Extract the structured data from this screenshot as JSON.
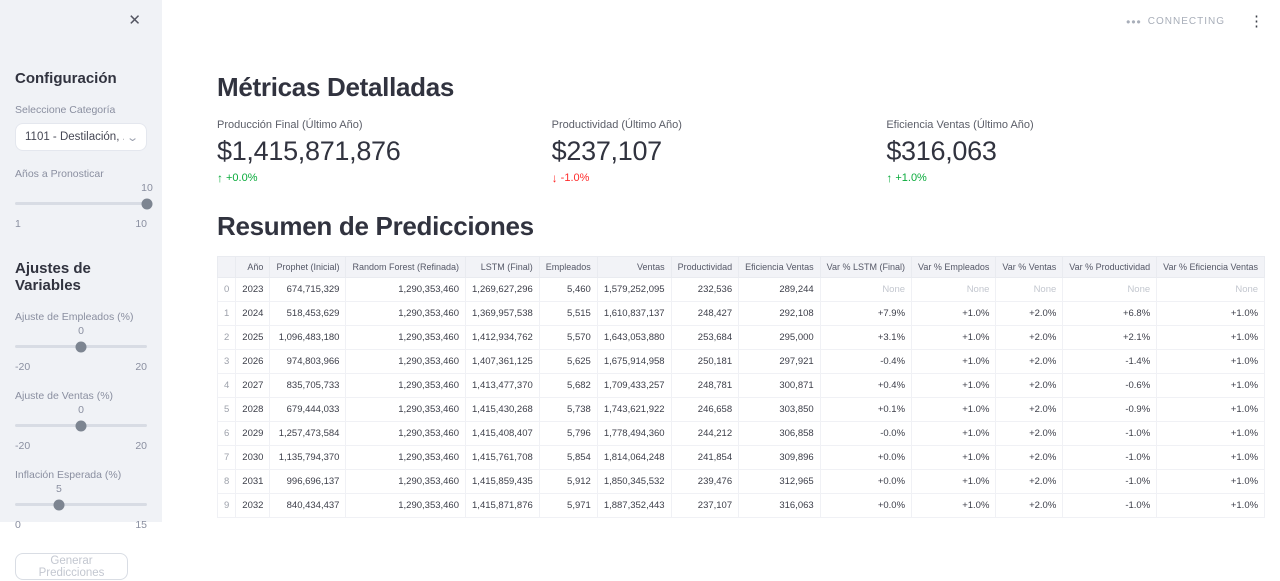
{
  "app": {
    "status": "CONNECTING",
    "status_dots": "•••",
    "menu_glyph": "⋮",
    "close_glyph": "✕"
  },
  "icons": {
    "up_arrow": "↑",
    "down_arrow": "↓",
    "chevron_down": "⌄"
  },
  "colors": {
    "delta_up": "#09ab3b",
    "delta_down": "#ff2b2b",
    "sidebar_bg": "#f0f2f6",
    "accent_thumb": "#7d8591"
  },
  "sidebar": {
    "title": "Configuración",
    "category": {
      "label": "Seleccione Categoría",
      "value": "1101 - Destilación, ..."
    },
    "years": {
      "label": "Años a Pronosticar",
      "value": "10",
      "min": "1",
      "max": "10",
      "percent": 100
    },
    "adjustments_title": "Ajustes de Variables",
    "sliders": [
      {
        "label": "Ajuste de Empleados (%)",
        "value": "0",
        "min": "-20",
        "max": "20",
        "percent": 50
      },
      {
        "label": "Ajuste de Ventas (%)",
        "value": "0",
        "min": "-20",
        "max": "20",
        "percent": 50
      },
      {
        "label": "Inflación Esperada (%)",
        "value": "5",
        "min": "0",
        "max": "15",
        "percent": 33.3
      }
    ],
    "button_label": "Generar Predicciones"
  },
  "metrics": {
    "title": "Métricas Detalladas",
    "items": [
      {
        "label": "Producción Final (Último Año)",
        "value": "$1,415,871,876",
        "delta": "+0.0%",
        "direction": "up"
      },
      {
        "label": "Productividad (Último Año)",
        "value": "$237,107",
        "delta": "-1.0%",
        "direction": "down"
      },
      {
        "label": "Eficiencia Ventas (Último Año)",
        "value": "$316,063",
        "delta": "+1.0%",
        "direction": "up"
      }
    ]
  },
  "table": {
    "title": "Resumen de Predicciones",
    "headers": [
      "",
      "Año",
      "Prophet (Inicial)",
      "Random Forest (Refinada)",
      "LSTM (Final)",
      "Empleados",
      "Ventas",
      "Productividad",
      "Eficiencia Ventas",
      "Var % LSTM (Final)",
      "Var % Empleados",
      "Var % Ventas",
      "Var % Productividad",
      "Var % Eficiencia Ventas"
    ],
    "rows": [
      [
        "0",
        "2023",
        "674,715,329",
        "1,290,353,460",
        "1,269,627,296",
        "5,460",
        "1,579,252,095",
        "232,536",
        "289,244",
        "None",
        "None",
        "None",
        "None",
        "None"
      ],
      [
        "1",
        "2024",
        "518,453,629",
        "1,290,353,460",
        "1,369,957,538",
        "5,515",
        "1,610,837,137",
        "248,427",
        "292,108",
        "+7.9%",
        "+1.0%",
        "+2.0%",
        "+6.8%",
        "+1.0%"
      ],
      [
        "2",
        "2025",
        "1,096,483,180",
        "1,290,353,460",
        "1,412,934,762",
        "5,570",
        "1,643,053,880",
        "253,684",
        "295,000",
        "+3.1%",
        "+1.0%",
        "+2.0%",
        "+2.1%",
        "+1.0%"
      ],
      [
        "3",
        "2026",
        "974,803,966",
        "1,290,353,460",
        "1,407,361,125",
        "5,625",
        "1,675,914,958",
        "250,181",
        "297,921",
        "-0.4%",
        "+1.0%",
        "+2.0%",
        "-1.4%",
        "+1.0%"
      ],
      [
        "4",
        "2027",
        "835,705,733",
        "1,290,353,460",
        "1,413,477,370",
        "5,682",
        "1,709,433,257",
        "248,781",
        "300,871",
        "+0.4%",
        "+1.0%",
        "+2.0%",
        "-0.6%",
        "+1.0%"
      ],
      [
        "5",
        "2028",
        "679,444,033",
        "1,290,353,460",
        "1,415,430,268",
        "5,738",
        "1,743,621,922",
        "246,658",
        "303,850",
        "+0.1%",
        "+1.0%",
        "+2.0%",
        "-0.9%",
        "+1.0%"
      ],
      [
        "6",
        "2029",
        "1,257,473,584",
        "1,290,353,460",
        "1,415,408,407",
        "5,796",
        "1,778,494,360",
        "244,212",
        "306,858",
        "-0.0%",
        "+1.0%",
        "+2.0%",
        "-1.0%",
        "+1.0%"
      ],
      [
        "7",
        "2030",
        "1,135,794,370",
        "1,290,353,460",
        "1,415,761,708",
        "5,854",
        "1,814,064,248",
        "241,854",
        "309,896",
        "+0.0%",
        "+1.0%",
        "+2.0%",
        "-1.0%",
        "+1.0%"
      ],
      [
        "8",
        "2031",
        "996,696,137",
        "1,290,353,460",
        "1,415,859,435",
        "5,912",
        "1,850,345,532",
        "239,476",
        "312,965",
        "+0.0%",
        "+1.0%",
        "+2.0%",
        "-1.0%",
        "+1.0%"
      ],
      [
        "9",
        "2032",
        "840,434,437",
        "1,290,353,460",
        "1,415,871,876",
        "5,971",
        "1,887,352,443",
        "237,107",
        "316,063",
        "+0.0%",
        "+1.0%",
        "+2.0%",
        "-1.0%",
        "+1.0%"
      ]
    ]
  }
}
